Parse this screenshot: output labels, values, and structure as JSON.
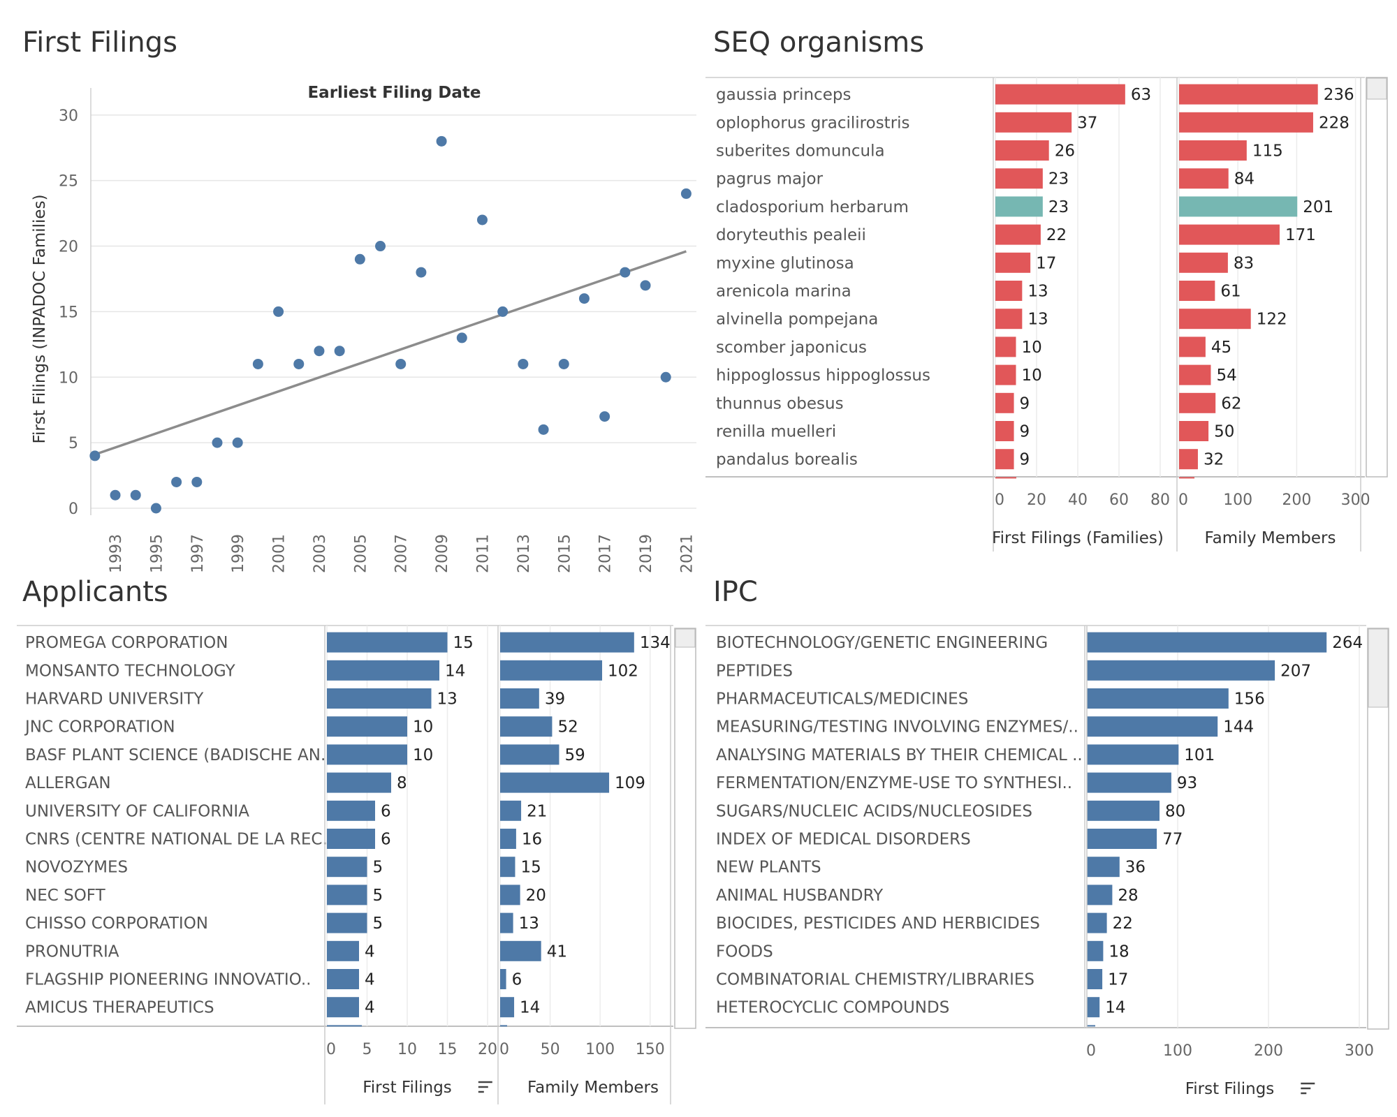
{
  "titles": {
    "first_filings": "First Filings",
    "seq_organisms": "SEQ organisms",
    "applicants": "Applicants",
    "ipc": "IPC"
  },
  "colors": {
    "scatter_point": "#4e79a7",
    "trend_line": "#8c8c8c",
    "seq_bar": "#e15759",
    "seq_highlight": "#76b7b2",
    "blue_bar": "#4e79a7"
  },
  "chart_data": [
    {
      "id": "first_filings",
      "type": "scatter",
      "title": "Earliest Filing Date",
      "ylabel": "First Filings (INPADOC Families)",
      "xlabel": "",
      "ylim": [
        0,
        31
      ],
      "yticks": [
        0,
        5,
        10,
        15,
        20,
        25,
        30
      ],
      "xlim": [
        1991.8,
        2021.5
      ],
      "xticks": [
        1993,
        1995,
        1997,
        1999,
        2001,
        2003,
        2005,
        2007,
        2009,
        2011,
        2013,
        2015,
        2017,
        2019,
        2021
      ],
      "points": [
        {
          "x": 1992,
          "y": 4
        },
        {
          "x": 1993,
          "y": 1
        },
        {
          "x": 1994,
          "y": 1
        },
        {
          "x": 1995,
          "y": 0
        },
        {
          "x": 1996,
          "y": 2
        },
        {
          "x": 1997,
          "y": 2
        },
        {
          "x": 1998,
          "y": 5
        },
        {
          "x": 1999,
          "y": 5
        },
        {
          "x": 2000,
          "y": 11
        },
        {
          "x": 2001,
          "y": 15
        },
        {
          "x": 2002,
          "y": 11
        },
        {
          "x": 2003,
          "y": 12
        },
        {
          "x": 2004,
          "y": 12
        },
        {
          "x": 2005,
          "y": 19
        },
        {
          "x": 2006,
          "y": 20
        },
        {
          "x": 2007,
          "y": 11
        },
        {
          "x": 2008,
          "y": 18
        },
        {
          "x": 2009,
          "y": 28
        },
        {
          "x": 2010,
          "y": 13
        },
        {
          "x": 2011,
          "y": 22
        },
        {
          "x": 2012,
          "y": 15
        },
        {
          "x": 2013,
          "y": 11
        },
        {
          "x": 2014,
          "y": 6
        },
        {
          "x": 2015,
          "y": 11
        },
        {
          "x": 2016,
          "y": 16
        },
        {
          "x": 2017,
          "y": 7
        },
        {
          "x": 2018,
          "y": 18
        },
        {
          "x": 2019,
          "y": 17
        },
        {
          "x": 2020,
          "y": 10
        },
        {
          "x": 2021,
          "y": 24
        }
      ],
      "trend": {
        "x": [
          1992,
          2021
        ],
        "y": [
          4.1,
          19.6
        ]
      },
      "grid": true
    },
    {
      "id": "seq_organisms",
      "type": "bar",
      "orientation": "horizontal",
      "categories": [
        "gaussia princeps",
        "oplophorus gracilirostris",
        "suberites domuncula",
        "pagrus major",
        "cladosporium herbarum",
        "doryteuthis pealeii",
        "myxine glutinosa",
        "arenicola marina",
        "alvinella pompejana",
        "scomber japonicus",
        "hippoglossus hippoglossus",
        "thunnus obesus",
        "renilla muelleri",
        "pandalus borealis"
      ],
      "highlight_index": 4,
      "series": [
        {
          "name": "First Filings (Families)",
          "values": [
            63,
            37,
            26,
            23,
            23,
            22,
            17,
            13,
            13,
            10,
            10,
            9,
            9,
            9
          ],
          "xlim": [
            0,
            80
          ],
          "xticks": [
            0,
            20,
            40,
            60,
            80
          ]
        },
        {
          "name": "Family Members",
          "values": [
            236,
            228,
            115,
            84,
            201,
            171,
            83,
            61,
            122,
            45,
            54,
            62,
            50,
            32
          ],
          "xlim": [
            0,
            310
          ],
          "xticks": [
            0,
            100,
            200,
            300
          ]
        }
      ],
      "grid": true
    },
    {
      "id": "applicants",
      "type": "bar",
      "orientation": "horizontal",
      "categories": [
        "PROMEGA CORPORATION",
        "MONSANTO TECHNOLOGY",
        "HARVARD UNIVERSITY",
        "JNC CORPORATION",
        "BASF PLANT SCIENCE (BADISCHE AN..",
        "ALLERGAN",
        "UNIVERSITY OF CALIFORNIA",
        "CNRS (CENTRE NATIONAL DE LA REC..",
        "NOVOZYMES",
        "NEC SOFT",
        "CHISSO CORPORATION",
        "PRONUTRIA",
        "FLAGSHIP PIONEERING INNOVATIO..",
        "AMICUS THERAPEUTICS"
      ],
      "series": [
        {
          "name": "First Filings",
          "values": [
            15,
            14,
            13,
            10,
            10,
            8,
            6,
            6,
            5,
            5,
            5,
            4,
            4,
            4
          ],
          "xlim": [
            0,
            20
          ],
          "xticks": [
            0,
            5,
            10,
            15,
            20
          ],
          "sorted": true
        },
        {
          "name": "Family Members",
          "values": [
            134,
            102,
            39,
            52,
            59,
            109,
            21,
            16,
            15,
            20,
            13,
            41,
            6,
            14
          ],
          "xlim": [
            0,
            190
          ],
          "xticks": [
            0,
            50,
            100,
            150
          ]
        }
      ],
      "grid": true
    },
    {
      "id": "ipc",
      "type": "bar",
      "orientation": "horizontal",
      "categories": [
        "BIOTECHNOLOGY/GENETIC ENGINEERING",
        "PEPTIDES",
        "PHARMACEUTICALS/MEDICINES",
        "MEASURING/TESTING INVOLVING ENZYMES/..",
        "ANALYSING MATERIALS BY THEIR CHEMICAL ..",
        "FERMENTATION/ENZYME-USE TO SYNTHESI..",
        "SUGARS/NUCLEIC ACIDS/NUCLEOSIDES",
        "INDEX OF MEDICAL DISORDERS",
        "NEW PLANTS",
        "ANIMAL HUSBANDRY",
        "BIOCIDES, PESTICIDES AND HERBICIDES",
        "FOODS",
        "COMBINATORIAL CHEMISTRY/LIBRARIES",
        "HETEROCYCLIC COMPOUNDS"
      ],
      "series": [
        {
          "name": "First Filings",
          "values": [
            264,
            207,
            156,
            144,
            101,
            93,
            80,
            77,
            36,
            28,
            22,
            18,
            17,
            14
          ],
          "xlim": [
            0,
            330
          ],
          "xticks": [
            0,
            100,
            200,
            300
          ],
          "sorted": true
        }
      ],
      "grid": true
    }
  ]
}
